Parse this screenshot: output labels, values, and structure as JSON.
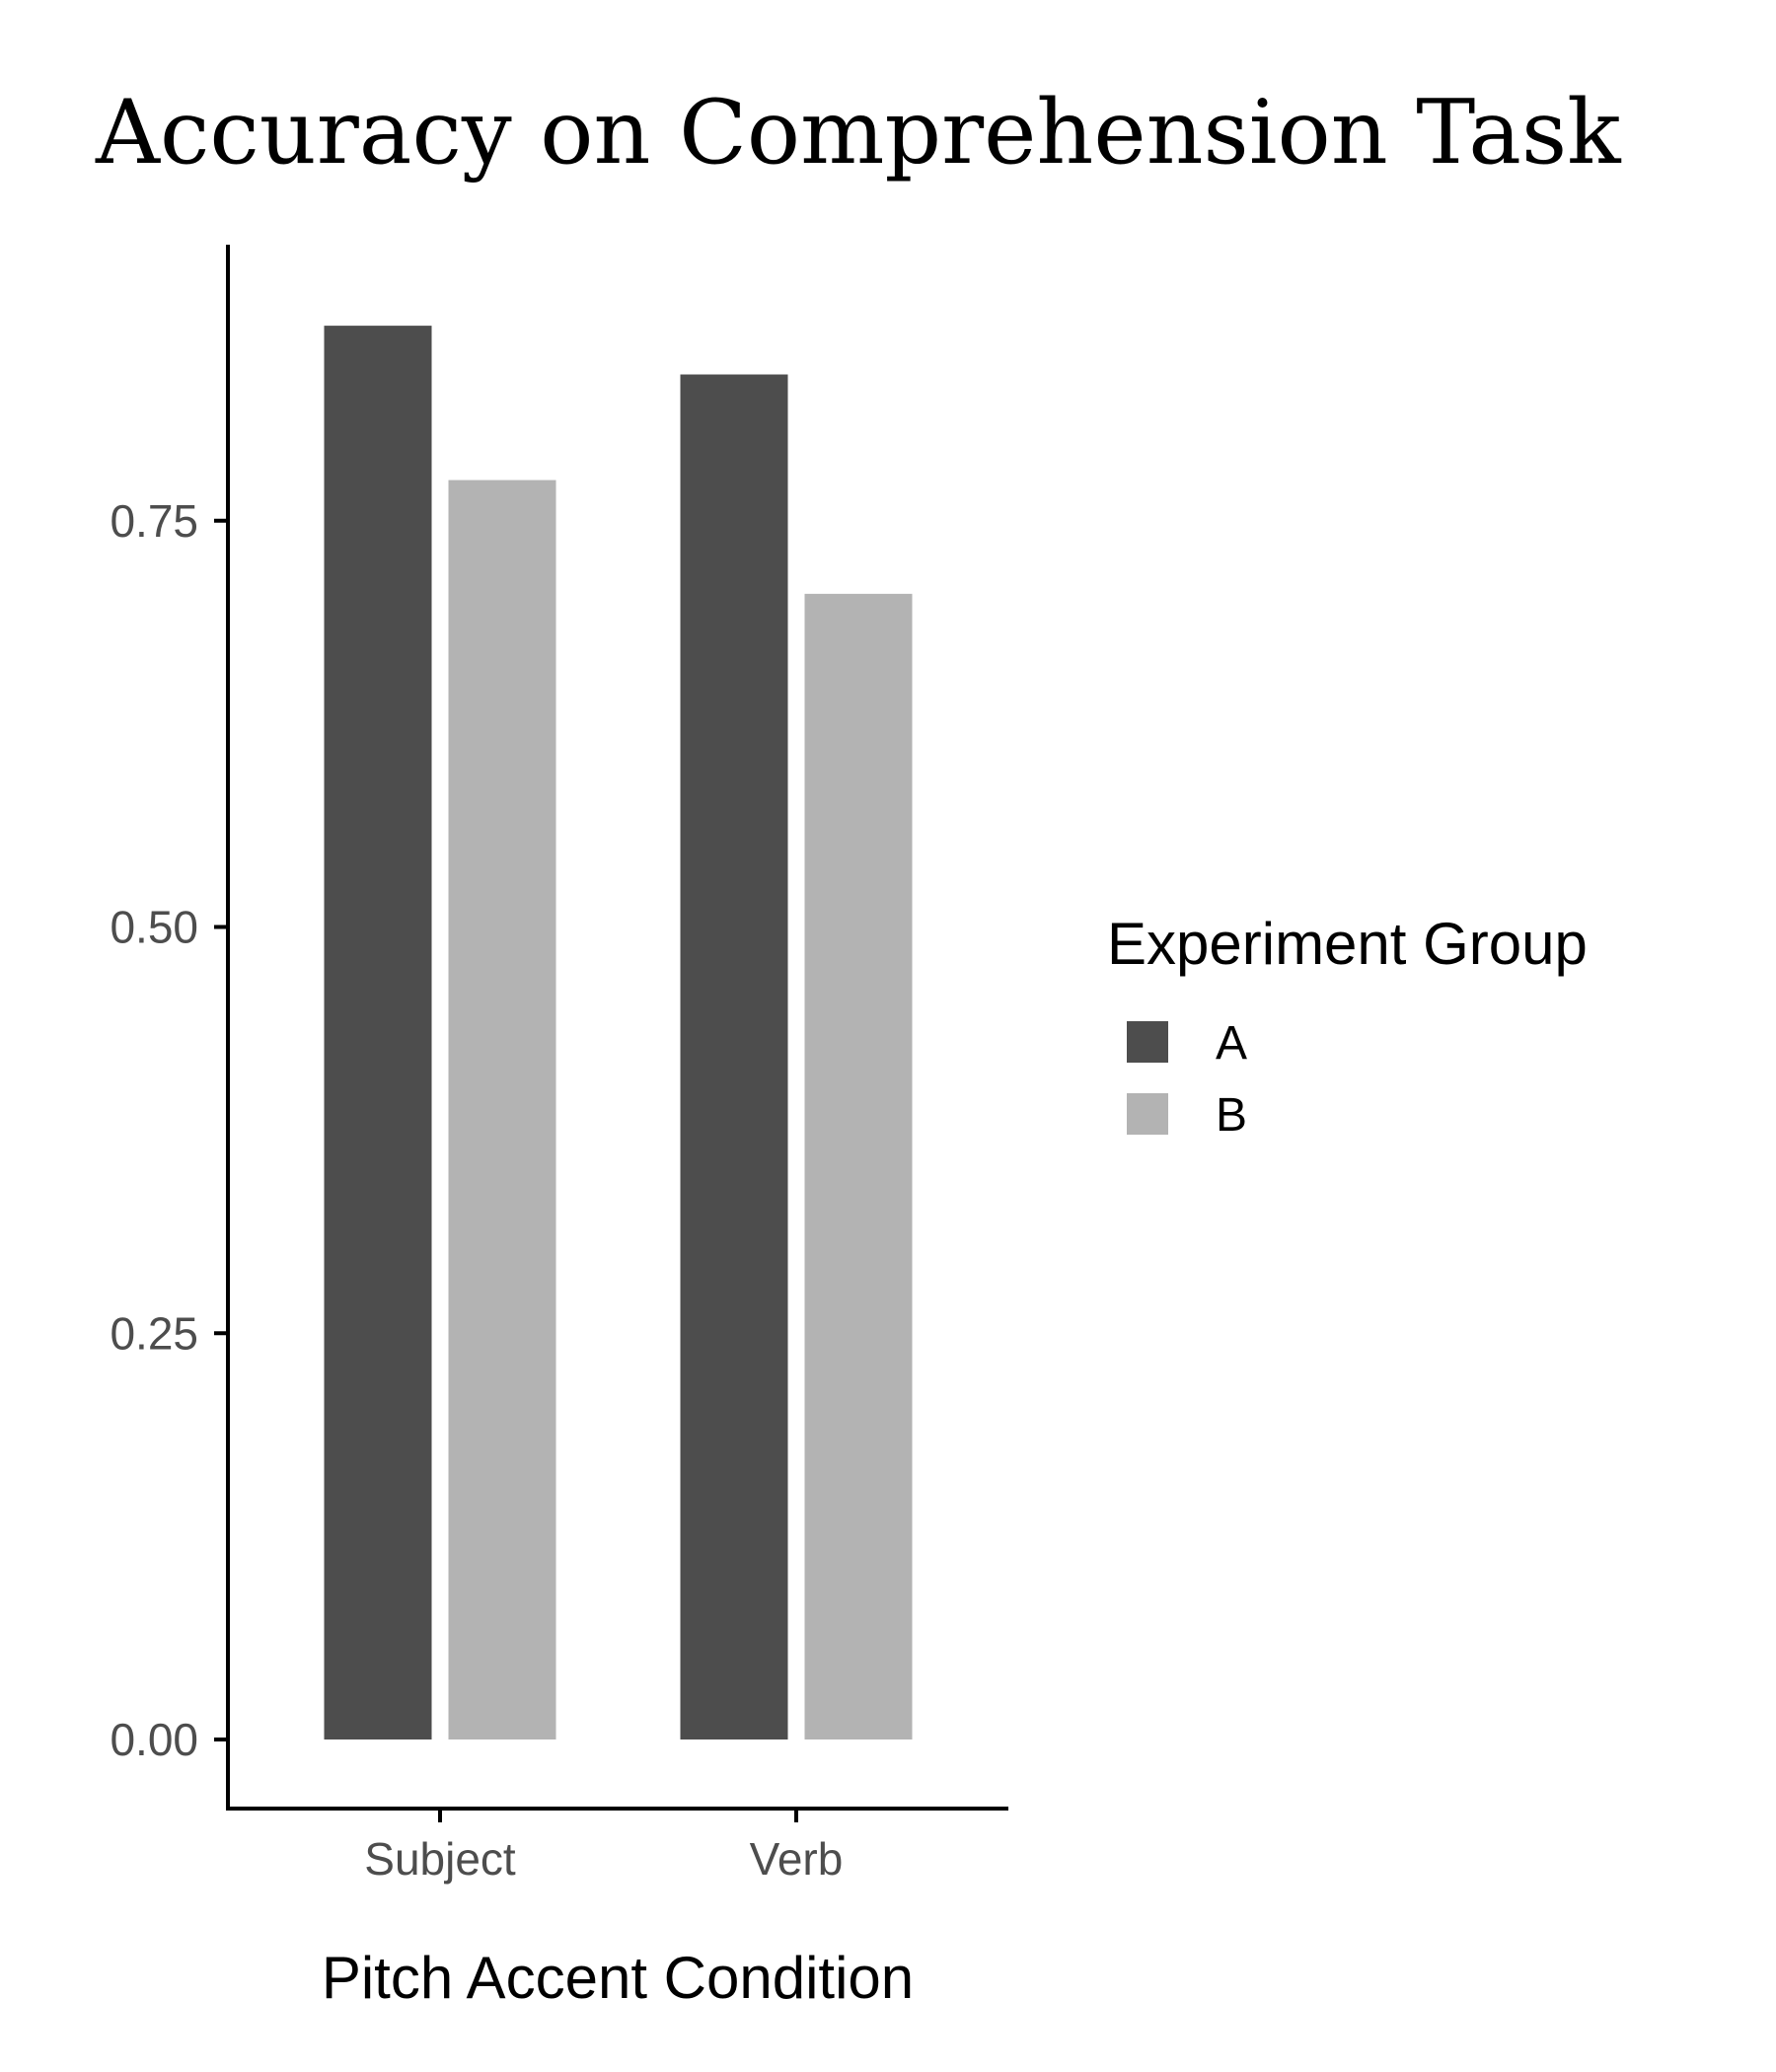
{
  "chart_data": {
    "type": "bar",
    "title": "Accuracy on Comprehension Task",
    "xlabel": "Pitch Accent Condition",
    "ylabel": "",
    "categories": [
      "Subject",
      "Verb"
    ],
    "series": [
      {
        "name": "A",
        "color": "#4d4d4d",
        "values": [
          0.87,
          0.84
        ]
      },
      {
        "name": "B",
        "color": "#b3b3b3",
        "values": [
          0.775,
          0.705
        ]
      }
    ],
    "ylim": [
      -0.04,
      0.92
    ],
    "yticks": [
      {
        "value": 0,
        "label": "0.00"
      },
      {
        "value": 0.25,
        "label": "0.25"
      },
      {
        "value": 0.5,
        "label": "0.50"
      },
      {
        "value": 0.75,
        "label": "0.75"
      }
    ],
    "grid": false,
    "legend": {
      "title": "Experiment Group",
      "placement": "right"
    }
  }
}
